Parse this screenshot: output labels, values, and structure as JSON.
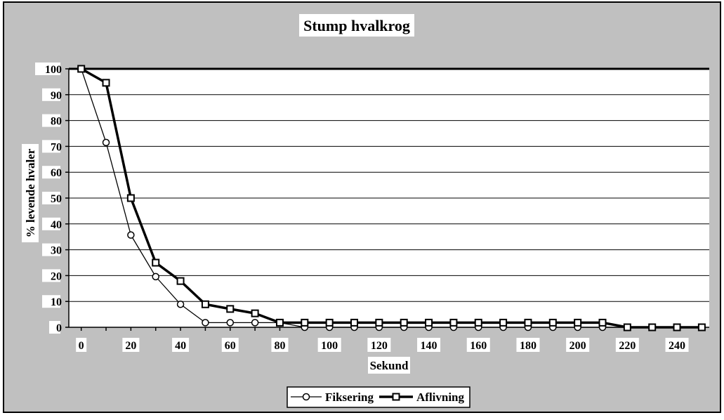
{
  "chart_data": {
    "type": "line",
    "title": "Stump hvalkrog",
    "xlabel": "Sekund",
    "ylabel": "% levende hvaler",
    "ylim": [
      0,
      100
    ],
    "xlim": [
      -5,
      253
    ],
    "y_ticks": [
      0,
      10,
      20,
      30,
      40,
      50,
      60,
      70,
      80,
      90,
      100
    ],
    "x_ticks": [
      0,
      20,
      40,
      60,
      80,
      100,
      120,
      140,
      160,
      180,
      200,
      220,
      240
    ],
    "grid": "horizontal",
    "legend_position": "bottom",
    "x": [
      0,
      10,
      20,
      30,
      40,
      50,
      60,
      70,
      80,
      90,
      100,
      110,
      120,
      130,
      140,
      150,
      160,
      170,
      180,
      190,
      200,
      210,
      220,
      230,
      240,
      250
    ],
    "series": [
      {
        "name": "Fiksering",
        "marker": "circle",
        "line_width": "thin",
        "values": [
          100,
          71.5,
          35.7,
          19.6,
          8.9,
          1.8,
          1.8,
          1.8,
          1.8,
          0,
          0,
          0,
          0,
          0,
          0,
          0,
          0,
          0,
          0,
          0,
          0,
          0,
          0,
          0,
          0,
          0
        ]
      },
      {
        "name": "Aflivning",
        "marker": "square",
        "line_width": "thick",
        "values": [
          100,
          94.6,
          50,
          25,
          17.9,
          8.9,
          7.1,
          5.4,
          1.8,
          1.8,
          1.8,
          1.8,
          1.8,
          1.8,
          1.8,
          1.8,
          1.8,
          1.8,
          1.8,
          1.8,
          1.8,
          1.8,
          0,
          0,
          0,
          0
        ]
      }
    ],
    "colors": {
      "outer_background": "#c0c0c0",
      "plot_background": "#ffffff",
      "line": "#000000"
    }
  }
}
